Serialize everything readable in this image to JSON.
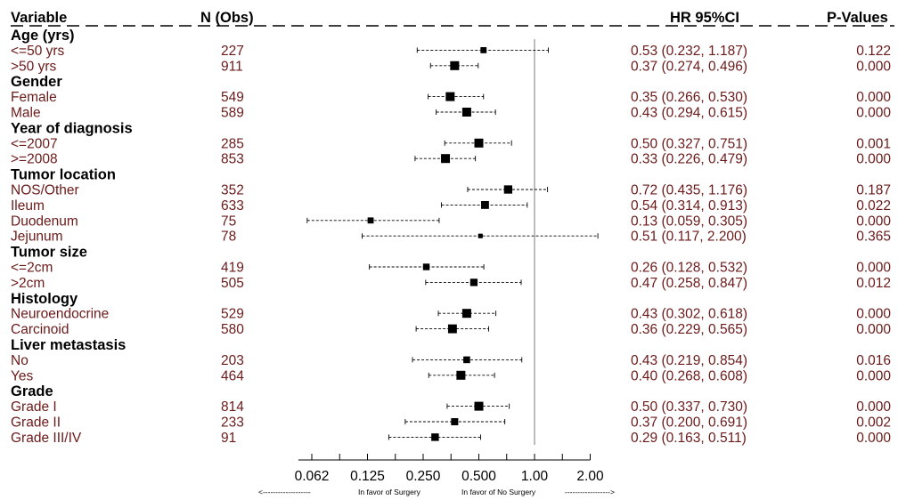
{
  "headers": {
    "variable": "Variable",
    "n": "N (Obs)",
    "hr": "HR 95%CI",
    "p": "P-Values"
  },
  "axis_note": {
    "left_arrow": "<-------------------",
    "left": "In favor of Surgery",
    "right": "In favor of No Surgery",
    "right_arrow": "------------------>"
  },
  "colors": {
    "row_text": "#6b1a1a",
    "header_text": "#000000",
    "reference_line": "#bdbdbd"
  },
  "chart_data": {
    "type": "forest",
    "x_scale": "log2",
    "reference_value": 1.0,
    "xticks": [
      {
        "value": 0.0625,
        "label": "0.062"
      },
      {
        "value": 0.125,
        "label": "0.125"
      },
      {
        "value": 0.25,
        "label": "0.250"
      },
      {
        "value": 0.5,
        "label": "0.500"
      },
      {
        "value": 1.0,
        "label": "1.00"
      },
      {
        "value": 2.0,
        "label": "2.00"
      }
    ],
    "groups": [
      {
        "label": "Age (yrs)",
        "rows": [
          {
            "label": "<=50 yrs",
            "n": "227",
            "hr": 0.53,
            "lo": 0.232,
            "hi": 1.187,
            "hr_text": "0.53 (0.232, 1.187)",
            "p": "0.122"
          },
          {
            "label": ">50 yrs",
            "n": "911",
            "hr": 0.37,
            "lo": 0.274,
            "hi": 0.496,
            "hr_text": "0.37 (0.274, 0.496)",
            "p": "0.000"
          }
        ]
      },
      {
        "label": "Gender",
        "rows": [
          {
            "label": "Female",
            "n": "549",
            "hr": 0.35,
            "lo": 0.266,
            "hi": 0.53,
            "hr_text": "0.35 (0.266, 0.530)",
            "p": "0.000"
          },
          {
            "label": "Male",
            "n": "589",
            "hr": 0.43,
            "lo": 0.294,
            "hi": 0.615,
            "hr_text": "0.43 (0.294, 0.615)",
            "p": "0.000"
          }
        ]
      },
      {
        "label": "Year of diagnosis",
        "rows": [
          {
            "label": "<=2007",
            "n": "285",
            "hr": 0.5,
            "lo": 0.327,
            "hi": 0.751,
            "hr_text": "0.50 (0.327, 0.751)",
            "p": "0.001"
          },
          {
            "label": ">=2008",
            "n": "853",
            "hr": 0.33,
            "lo": 0.226,
            "hi": 0.479,
            "hr_text": "0.33 (0.226, 0.479)",
            "p": "0.000"
          }
        ]
      },
      {
        "label": "Tumor location",
        "rows": [
          {
            "label": "NOS/Other",
            "n": "352",
            "hr": 0.72,
            "lo": 0.435,
            "hi": 1.176,
            "hr_text": "0.72 (0.435, 1.176)",
            "p": "0.187"
          },
          {
            "label": "Ileum",
            "n": "633",
            "hr": 0.54,
            "lo": 0.314,
            "hi": 0.913,
            "hr_text": "0.54 (0.314, 0.913)",
            "p": "0.022"
          },
          {
            "label": "Duodenum",
            "n": "75",
            "hr": 0.13,
            "lo": 0.059,
            "hi": 0.305,
            "hr_text": "0.13 (0.059, 0.305)",
            "p": "0.000"
          },
          {
            "label": "Jejunum",
            "n": "78",
            "hr": 0.51,
            "lo": 0.117,
            "hi": 2.2,
            "hr_text": "0.51 (0.117, 2.200)",
            "p": "0.365"
          }
        ]
      },
      {
        "label": "Tumor size",
        "rows": [
          {
            "label": "<=2cm",
            "n": "419",
            "hr": 0.26,
            "lo": 0.128,
            "hi": 0.532,
            "hr_text": "0.26 (0.128, 0.532)",
            "p": "0.000"
          },
          {
            "label": ">2cm",
            "n": "505",
            "hr": 0.47,
            "lo": 0.258,
            "hi": 0.847,
            "hr_text": "0.47 (0.258, 0.847)",
            "p": "0.012"
          }
        ]
      },
      {
        "label": "Histology",
        "rows": [
          {
            "label": "Neuroendocrine",
            "n": "529",
            "hr": 0.43,
            "lo": 0.302,
            "hi": 0.618,
            "hr_text": "0.43 (0.302, 0.618)",
            "p": "0.000"
          },
          {
            "label": "Carcinoid",
            "n": "580",
            "hr": 0.36,
            "lo": 0.229,
            "hi": 0.565,
            "hr_text": "0.36 (0.229, 0.565)",
            "p": "0.000"
          }
        ]
      },
      {
        "label": "Liver metastasis",
        "rows": [
          {
            "label": "No",
            "n": "203",
            "hr": 0.43,
            "lo": 0.219,
            "hi": 0.854,
            "hr_text": "0.43 (0.219, 0.854)",
            "p": "0.016"
          },
          {
            "label": "Yes",
            "n": "464",
            "hr": 0.4,
            "lo": 0.268,
            "hi": 0.608,
            "hr_text": "0.40 (0.268, 0.608)",
            "p": "0.000"
          }
        ]
      },
      {
        "label": "Grade",
        "rows": [
          {
            "label": "Grade I",
            "n": "814",
            "hr": 0.5,
            "lo": 0.337,
            "hi": 0.73,
            "hr_text": "0.50 (0.337, 0.730)",
            "p": "0.000"
          },
          {
            "label": "Grade II",
            "n": "233",
            "hr": 0.37,
            "lo": 0.2,
            "hi": 0.691,
            "hr_text": "0.37 (0.200, 0.691)",
            "p": "0.002"
          },
          {
            "label": "Grade III/IV",
            "n": "91",
            "hr": 0.29,
            "lo": 0.163,
            "hi": 0.511,
            "hr_text": "0.29 (0.163, 0.511)",
            "p": "0.000"
          }
        ]
      }
    ]
  }
}
